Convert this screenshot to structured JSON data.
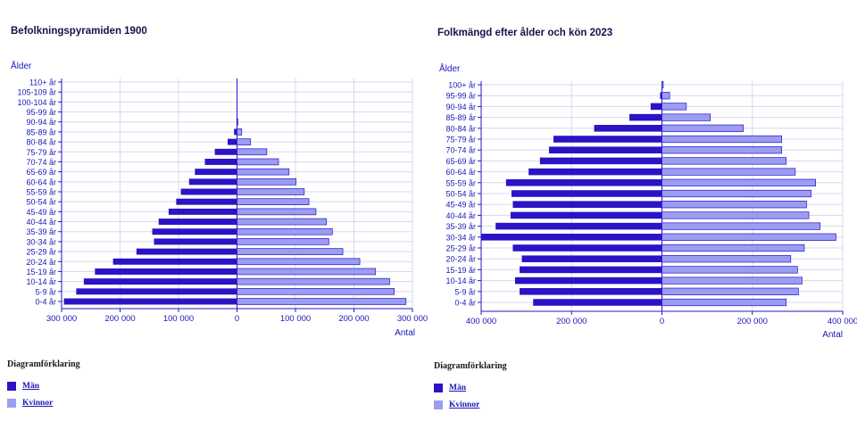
{
  "colors": {
    "men": "#2b13c6",
    "women": "#9a9df2",
    "grid": "#d8d8f0",
    "axis": "#2b13c6",
    "text": "#1a17b8"
  },
  "legend": {
    "heading": "Diagramförklaring",
    "men": "Män",
    "women": "Kvinnor"
  },
  "chart_data": [
    {
      "type": "bar",
      "orientation": "population-pyramid",
      "title": "Befolkningspyramiden 1900",
      "ylabel": "Ålder",
      "xlabel": "Antal",
      "grid": true,
      "xlim": [
        -300000,
        300000
      ],
      "ticks": [
        -300000,
        -200000,
        -100000,
        0,
        100000,
        200000,
        300000
      ],
      "tick_labels": [
        "300 000",
        "200 000",
        "100 000",
        "0",
        "100 000",
        "200 000",
        "300 000"
      ],
      "categories": [
        "110+ år",
        "105-109 år",
        "100-104 år",
        "95-99 år",
        "90-94 år",
        "85-89 år",
        "80-84 år",
        "75-79 år",
        "70-74 år",
        "65-69 år",
        "60-64 år",
        "55-59 år",
        "50-54 år",
        "45-49 år",
        "40-44 år",
        "35-39 år",
        "30-34 år",
        "25-29 år",
        "20-24 år",
        "15-19 år",
        "10-14 år",
        "5-9 år",
        "0-4 år"
      ],
      "series": [
        {
          "name": "Män",
          "values": [
            0,
            0,
            0,
            0,
            1000,
            5000,
            16000,
            38000,
            55000,
            72000,
            82000,
            96000,
            104000,
            117000,
            134000,
            145000,
            142000,
            172000,
            212000,
            243000,
            262000,
            275000,
            296000
          ]
        },
        {
          "name": "Kvinnor",
          "values": [
            0,
            0,
            0,
            0,
            1500,
            8000,
            23000,
            51000,
            71000,
            89000,
            101000,
            115000,
            123000,
            135000,
            153000,
            163000,
            157000,
            181000,
            210000,
            237000,
            261000,
            269000,
            289000
          ]
        }
      ]
    },
    {
      "type": "bar",
      "orientation": "population-pyramid",
      "title": "Folkmängd efter ålder och kön 2023",
      "ylabel": "Ålder",
      "xlabel": "Antal",
      "grid": true,
      "xlim": [
        -400000,
        400000
      ],
      "ticks": [
        -400000,
        -200000,
        0,
        200000,
        400000
      ],
      "tick_labels": [
        "400 000",
        "200 000",
        "0",
        "200 000",
        "400 000"
      ],
      "categories": [
        "100+ år",
        "95-99 år",
        "90-94 år",
        "85-89 år",
        "80-84 år",
        "75-79 år",
        "70-74 år",
        "65-69 år",
        "60-64 år",
        "55-59 år",
        "50-54 år",
        "45-49 år",
        "40-44 år",
        "35-39 år",
        "30-34 år",
        "25-29 år",
        "20-24 år",
        "15-19 år",
        "10-14 år",
        "5-9 år",
        "0-4 år"
      ],
      "series": [
        {
          "name": "Män",
          "values": [
            1000,
            4000,
            25000,
            72000,
            150000,
            240000,
            250000,
            270000,
            295000,
            345000,
            333000,
            330000,
            335000,
            368000,
            400000,
            330000,
            310000,
            315000,
            325000,
            315000,
            285000
          ]
        },
        {
          "name": "Kvinnor",
          "values": [
            3000,
            17000,
            54000,
            107000,
            180000,
            265000,
            265000,
            275000,
            295000,
            340000,
            330000,
            320000,
            325000,
            350000,
            385000,
            315000,
            285000,
            300000,
            310000,
            302000,
            275000
          ]
        }
      ]
    }
  ]
}
